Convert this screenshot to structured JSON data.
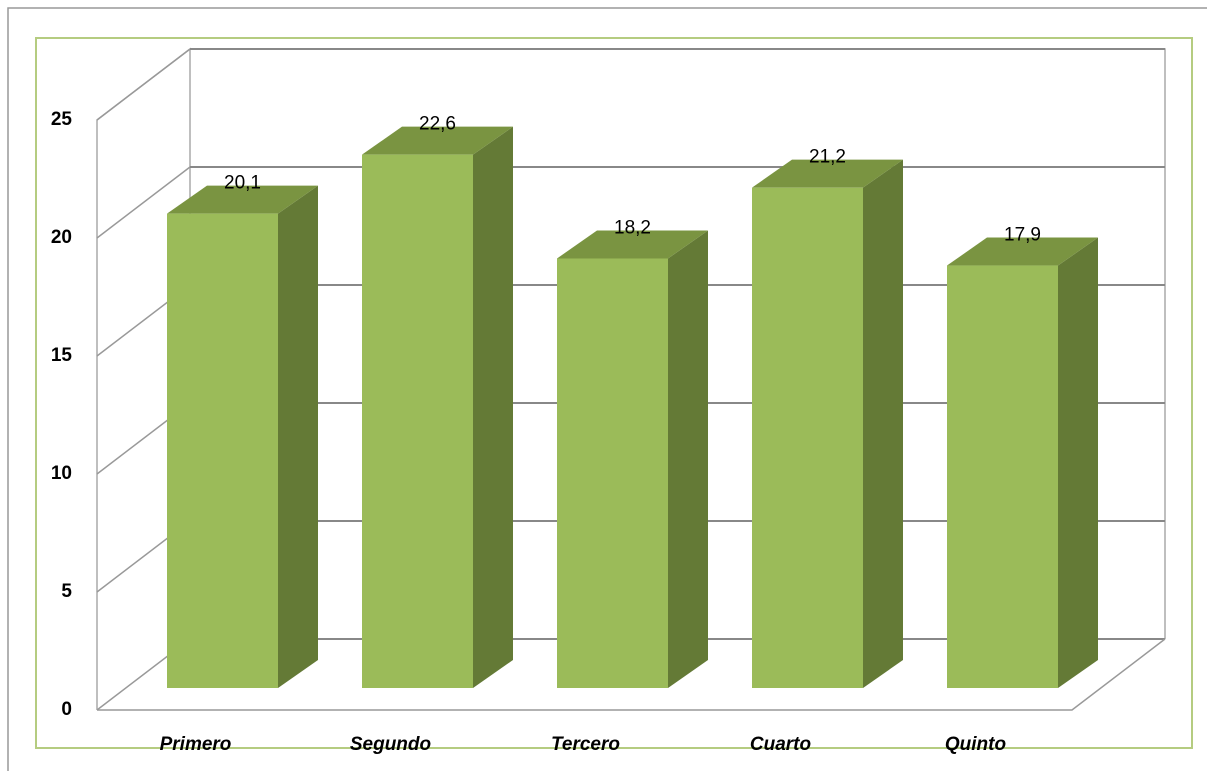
{
  "chart_data": {
    "type": "bar3d",
    "categories": [
      "Primero",
      "Segundo",
      "Tercero",
      "Cuarto",
      "Quinto"
    ],
    "values": [
      20.1,
      22.6,
      18.2,
      21.2,
      17.9
    ],
    "value_labels": [
      "20,1",
      "22,6",
      "18,2",
      "21,2",
      "17,9"
    ],
    "color": "#9bbb59",
    "ylim": [
      0,
      25
    ],
    "yticks": [
      0,
      5,
      10,
      15,
      20,
      25
    ],
    "grid": true
  }
}
